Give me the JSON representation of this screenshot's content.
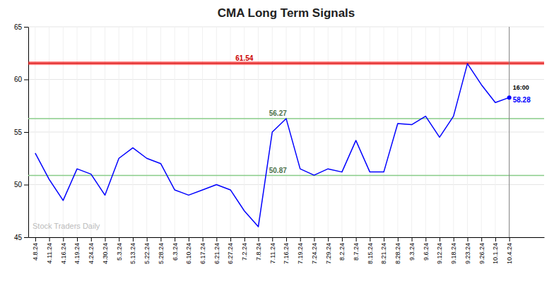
{
  "chart_data": {
    "type": "line",
    "title": "CMA Long Term Signals",
    "categories": [
      "4.8.24",
      "4.11.24",
      "4.16.24",
      "4.19.24",
      "4.24.24",
      "4.30.24",
      "5.3.24",
      "5.13.24",
      "5.22.24",
      "5.28.24",
      "6.3.24",
      "6.10.24",
      "6.17.24",
      "6.21.24",
      "6.27.24",
      "7.2.24",
      "7.8.24",
      "7.11.24",
      "7.16.24",
      "7.19.24",
      "7.24.24",
      "7.29.24",
      "8.2.24",
      "8.7.24",
      "8.15.24",
      "8.21.24",
      "8.28.24",
      "9.3.24",
      "9.6.24",
      "9.12.24",
      "9.18.24",
      "9.23.24",
      "9.26.24",
      "10.1.24",
      "10.4.24"
    ],
    "values": [
      53.0,
      50.5,
      48.5,
      51.5,
      51.0,
      49.0,
      52.5,
      53.5,
      52.5,
      52.0,
      49.5,
      49.0,
      49.5,
      50.0,
      49.5,
      47.5,
      46.0,
      55.0,
      56.27,
      51.5,
      50.9,
      51.5,
      51.2,
      54.2,
      51.2,
      51.2,
      55.8,
      55.7,
      56.5,
      54.5,
      56.5,
      61.5,
      59.5,
      57.8,
      58.28
    ],
    "color": "blue",
    "ylim": [
      45,
      65
    ],
    "yticks": [
      45,
      50,
      55,
      60,
      65
    ],
    "grid": true,
    "reference_lines": [
      {
        "value": 61.54,
        "label": "61.54",
        "color": "#cc0000"
      },
      {
        "value": 56.27,
        "label": "56.27",
        "color": "#88cc88"
      },
      {
        "value": 50.87,
        "label": "50.87",
        "color": "#88cc88"
      }
    ],
    "annotations": [
      "16:00",
      "58.28"
    ],
    "watermark": "Stock Traders Daily"
  }
}
